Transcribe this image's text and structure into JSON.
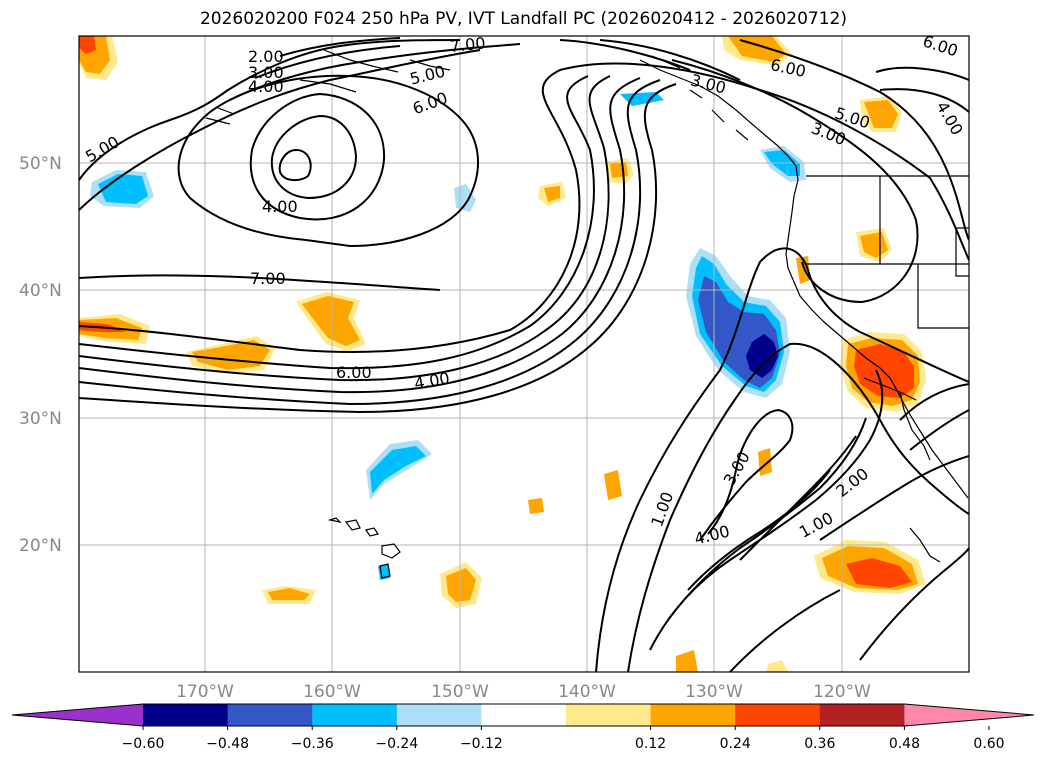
{
  "title": "2026020200 F024 250 hPa PV, IVT Landfall PC (2026020412 - 2026020712)",
  "lat_labels": [
    "50°N",
    "40°N",
    "30°N",
    "20°N"
  ],
  "lon_labels": [
    "170°W",
    "160°W",
    "150°W",
    "140°W",
    "130°W",
    "120°W"
  ],
  "pv_contour_labels": [
    "2.00",
    "3.00",
    "4.00",
    "5.00",
    "6.00",
    "7.00",
    "4.00",
    "7.00",
    "6.00",
    "4.00",
    "5.00",
    "6.00",
    "3.00",
    "5.00",
    "3.00",
    "6.00",
    "4.00"
  ],
  "ivt_contour_labels": [
    "1.00",
    "3.00",
    "4.00",
    "2.00",
    "1.00"
  ],
  "colorbar": {
    "ticks": [
      "−0.60",
      "−0.48",
      "−0.36",
      "−0.24",
      "−0.12",
      "0.12",
      "0.24",
      "0.36",
      "0.48",
      "0.60"
    ],
    "colors": [
      "#9932CC",
      "#00008B",
      "#3457C8",
      "#00BFFF",
      "#ADDFF7",
      "#FFFFFF",
      "#FFE98A",
      "#FFA500",
      "#FF4500",
      "#B22222",
      "#FF88AA"
    ]
  }
}
